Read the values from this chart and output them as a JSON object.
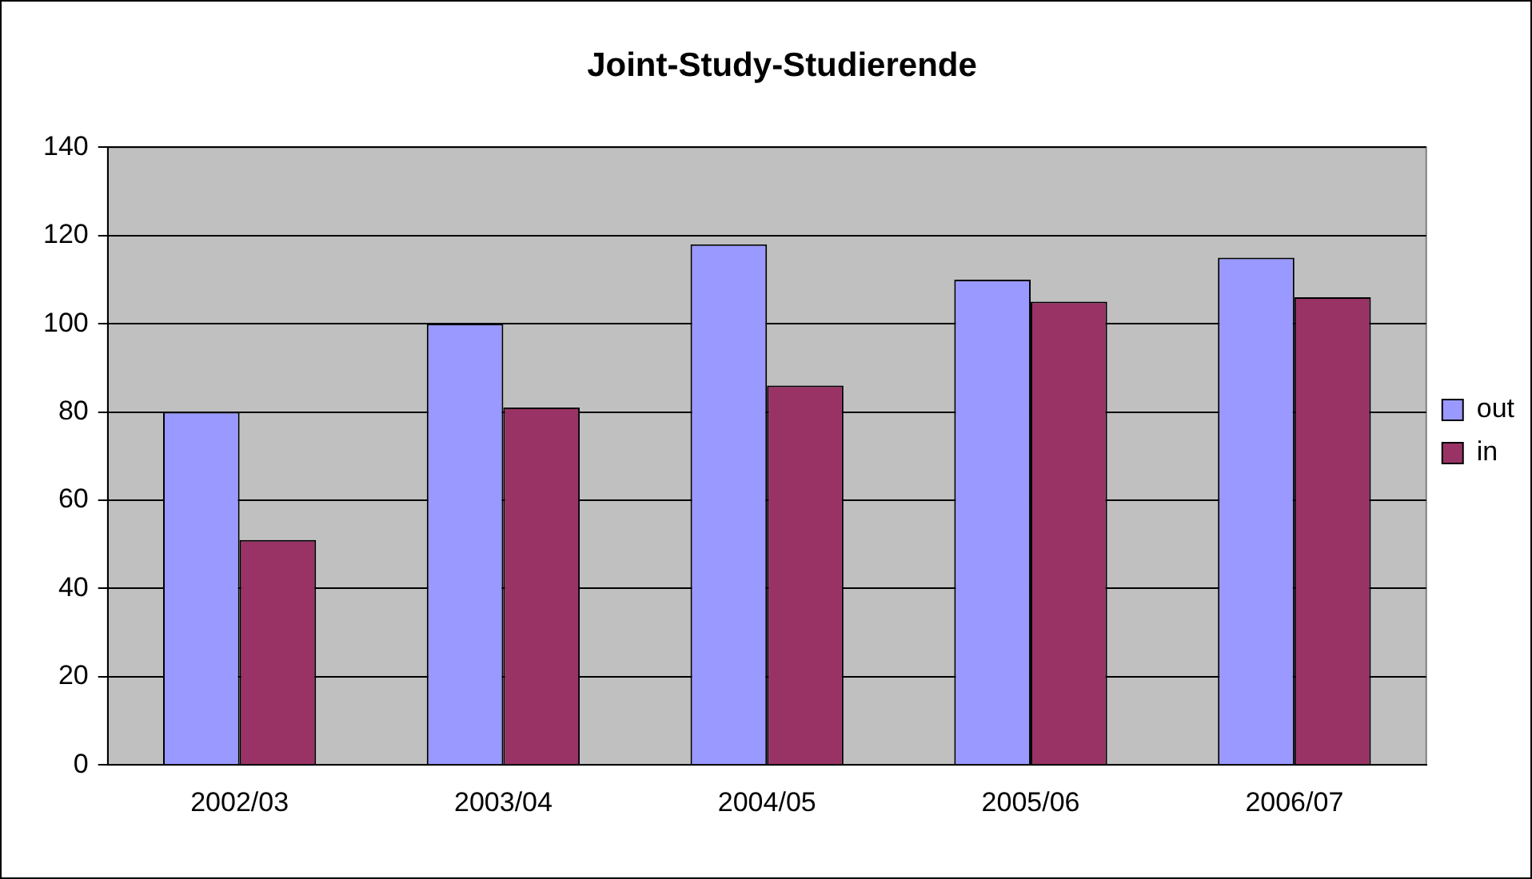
{
  "chart_data": {
    "type": "bar",
    "title": "Joint-Study-Studierende",
    "categories": [
      "2002/03",
      "2003/04",
      "2004/05",
      "2005/06",
      "2006/07"
    ],
    "series": [
      {
        "name": "out",
        "color": "#9999ff",
        "values": [
          80,
          100,
          118,
          110,
          115
        ]
      },
      {
        "name": "in",
        "color": "#993366",
        "values": [
          51,
          81,
          86,
          105,
          106
        ]
      }
    ],
    "ylim": [
      0,
      140
    ],
    "yticks": [
      0,
      20,
      40,
      60,
      80,
      100,
      120,
      140
    ],
    "grid": "y",
    "legend": "right"
  }
}
